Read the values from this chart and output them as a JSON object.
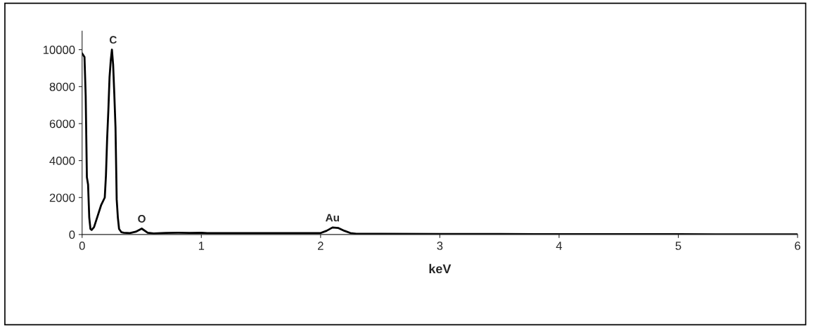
{
  "chart_data": {
    "type": "line",
    "xlabel": "keV",
    "xlim": [
      0,
      6
    ],
    "ylim": [
      0,
      11000
    ],
    "xticks": [
      0,
      1,
      2,
      3,
      4,
      5,
      6
    ],
    "yticks": [
      0,
      2000,
      4000,
      6000,
      8000,
      10000
    ],
    "grid": false,
    "legend": false,
    "marker": "none",
    "line_style": "solid",
    "annotations": [
      {
        "text": "C",
        "x": 0.26,
        "y": 10000
      },
      {
        "text": "O",
        "x": 0.5,
        "y": 320
      },
      {
        "text": "Au",
        "x": 2.1,
        "y": 380
      }
    ],
    "series": [
      {
        "color": "#000000",
        "x": [
          0,
          0.02,
          0.03,
          0.04,
          0.05,
          0.06,
          0.07,
          0.08,
          0.1,
          0.13,
          0.16,
          0.19,
          0.2,
          0.21,
          0.22,
          0.23,
          0.24,
          0.25,
          0.26,
          0.27,
          0.28,
          0.29,
          0.3,
          0.31,
          0.33,
          0.35,
          0.4,
          0.45,
          0.5,
          0.55,
          0.6,
          0.7,
          0.8,
          0.9,
          1.0,
          1.05,
          1.5,
          2.0,
          2.05,
          2.1,
          2.15,
          2.2,
          2.25,
          2.3,
          2.5,
          3,
          3.5,
          4,
          4.5,
          5,
          5.5,
          6
        ],
        "values": [
          9800,
          9600,
          7500,
          3100,
          2700,
          900,
          300,
          250,
          400,
          1000,
          1600,
          2000,
          3200,
          5200,
          6700,
          8500,
          9400,
          10000,
          9200,
          7600,
          5800,
          1900,
          900,
          300,
          120,
          100,
          80,
          150,
          320,
          100,
          60,
          90,
          100,
          90,
          100,
          80,
          80,
          80,
          200,
          380,
          350,
          200,
          80,
          40,
          40,
          30,
          25,
          20,
          20,
          15,
          12,
          10
        ]
      }
    ]
  }
}
